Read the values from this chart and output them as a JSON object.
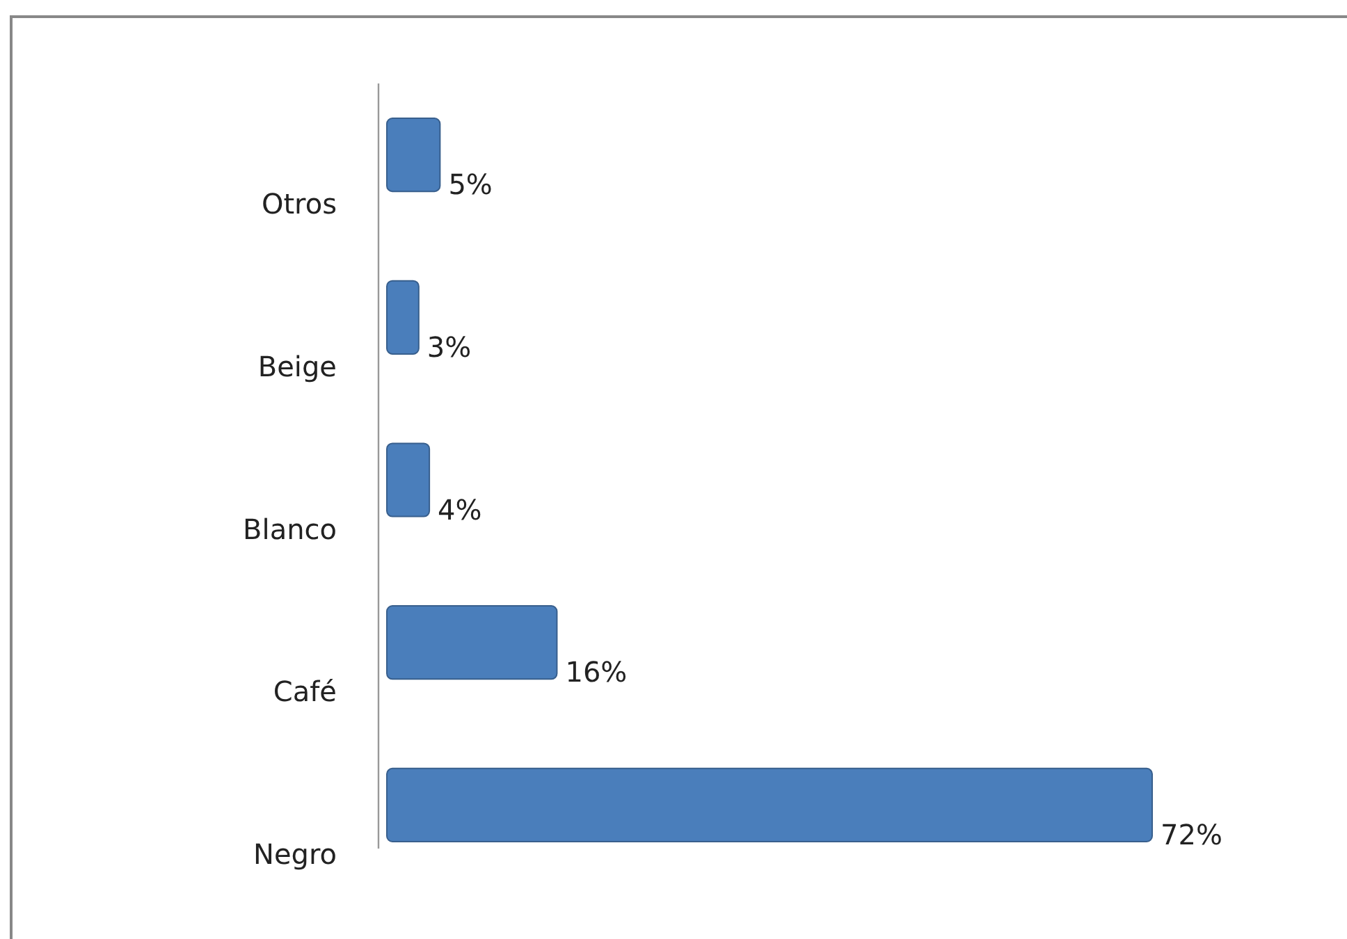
{
  "chart_data": {
    "type": "bar",
    "orientation": "horizontal",
    "categories": [
      "Otros",
      "Beige",
      "Blanco",
      "Café",
      "Negro"
    ],
    "values": [
      5,
      3,
      4,
      16,
      72
    ],
    "value_labels": [
      "5%",
      "3%",
      "4%",
      "16%",
      "72%"
    ],
    "color": "#4a7ebb"
  }
}
